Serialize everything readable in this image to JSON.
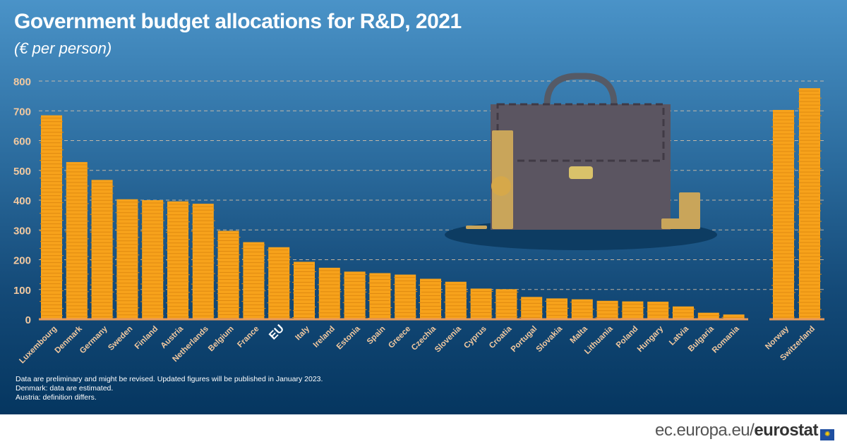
{
  "chart_data": {
    "type": "bar",
    "title": "Government budget allocations for R&D, 2021",
    "subtitle": "(€ per person)",
    "categories": [
      "Luxembourg",
      "Denmark",
      "Germany",
      "Sweden",
      "Finland",
      "Austria",
      "Netherlands",
      "Belgium",
      "France",
      "EU",
      "Italy",
      "Ireland",
      "Estonia",
      "Spain",
      "Greece",
      "Czechia",
      "Slovenia",
      "Cyprus",
      "Croatia",
      "Portugal",
      "Slovakia",
      "Malta",
      "Lithuania",
      "Poland",
      "Hungary",
      "Latvia",
      "Bulgaria",
      "Romania",
      "Norway",
      "Switzerland"
    ],
    "values": [
      685,
      528,
      468,
      403,
      400,
      396,
      388,
      297,
      259,
      242,
      193,
      173,
      160,
      155,
      150,
      136,
      126,
      103,
      101,
      75,
      70,
      67,
      62,
      60,
      59,
      43,
      22,
      16,
      703,
      776
    ],
    "ylim": [
      0,
      800
    ],
    "yticks": [
      "0",
      "100",
      "200",
      "300",
      "400",
      "500",
      "600",
      "700",
      "800"
    ],
    "grid": true,
    "colors": {
      "bar": "#f7a21b",
      "axis_text": "#f2c9a0",
      "grid": "#e8c9a8",
      "eu_label": "#ffffff"
    }
  },
  "notes": [
    "Data are preliminary and might be revised. Updated figures will be published in January 2023.",
    "Denmark: data are estimated.",
    "Austria: definition differs."
  ],
  "logo": {
    "domain": "ec.europa.eu/",
    "brand": "eurostat"
  }
}
